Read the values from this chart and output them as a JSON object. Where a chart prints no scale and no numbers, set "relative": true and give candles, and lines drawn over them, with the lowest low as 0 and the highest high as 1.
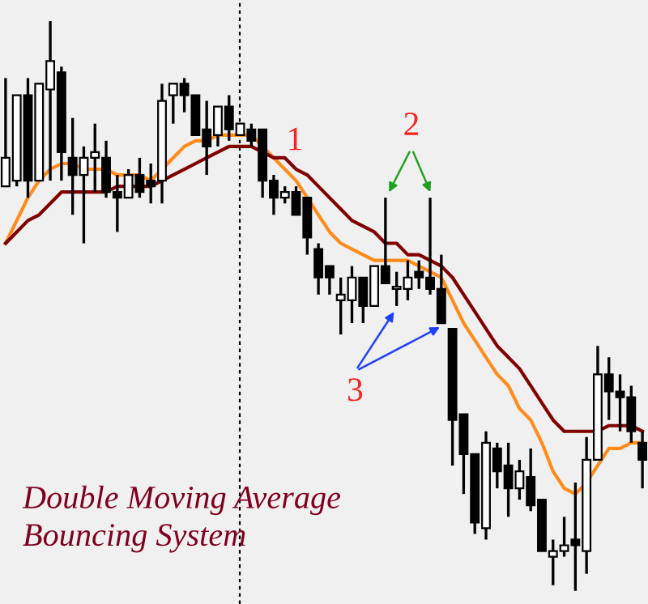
{
  "chart_data": {
    "type": "candlestick",
    "title": "Double Moving Average\nBouncing System",
    "relative": true,
    "categories": [
      null,
      null,
      null,
      null,
      null,
      null,
      null,
      null,
      null,
      null,
      null,
      null,
      null,
      null,
      null,
      null,
      null,
      null,
      null,
      null,
      null,
      null,
      null,
      null,
      null,
      null,
      null,
      null,
      null,
      null,
      null,
      null,
      null,
      null,
      null,
      null,
      null,
      null,
      null,
      null,
      null,
      null,
      null,
      null,
      null,
      null,
      null,
      null,
      null,
      null,
      null,
      null,
      null,
      null,
      null,
      null,
      null,
      null
    ],
    "ohlc": [
      [
        0.71,
        0.9,
        0.71,
        0.76
      ],
      [
        0.72,
        0.87,
        0.71,
        0.87
      ],
      [
        0.87,
        0.9,
        0.69,
        0.72
      ],
      [
        0.72,
        0.89,
        0.72,
        0.89
      ],
      [
        0.88,
        1.0,
        0.72,
        0.93
      ],
      [
        0.91,
        0.92,
        0.72,
        0.77
      ],
      [
        0.76,
        0.83,
        0.66,
        0.73
      ],
      [
        0.73,
        0.78,
        0.61,
        0.76
      ],
      [
        0.76,
        0.82,
        0.7,
        0.77
      ],
      [
        0.76,
        0.79,
        0.69,
        0.7
      ],
      [
        0.7,
        0.73,
        0.63,
        0.69
      ],
      [
        0.69,
        0.74,
        0.69,
        0.73
      ],
      [
        0.73,
        0.76,
        0.69,
        0.7
      ],
      [
        0.72,
        0.75,
        0.68,
        0.71
      ],
      [
        0.72,
        0.89,
        0.68,
        0.86
      ],
      [
        0.87,
        0.89,
        0.82,
        0.89
      ],
      [
        0.89,
        0.9,
        0.84,
        0.87
      ],
      [
        0.87,
        0.87,
        0.8,
        0.8
      ],
      [
        0.81,
        0.86,
        0.73,
        0.78
      ],
      [
        0.8,
        0.85,
        0.78,
        0.85
      ],
      [
        0.85,
        0.87,
        0.79,
        0.81
      ],
      [
        0.8,
        0.82,
        0.8,
        0.82
      ],
      [
        0.81,
        0.82,
        0.78,
        0.79
      ],
      [
        0.81,
        0.81,
        0.69,
        0.72
      ],
      [
        0.72,
        0.73,
        0.66,
        0.69
      ],
      [
        0.69,
        0.71,
        0.68,
        0.7
      ],
      [
        0.7,
        0.71,
        0.66,
        0.66
      ],
      [
        0.69,
        0.69,
        0.59,
        0.62
      ],
      [
        0.6,
        0.61,
        0.52,
        0.55
      ],
      [
        0.57,
        0.57,
        0.52,
        0.55
      ],
      [
        0.51,
        0.55,
        0.45,
        0.52
      ],
      [
        0.51,
        0.57,
        0.47,
        0.55
      ],
      [
        0.55,
        0.55,
        0.47,
        0.5
      ],
      [
        0.5,
        0.57,
        0.5,
        0.57
      ],
      [
        0.57,
        0.69,
        0.54,
        0.54
      ],
      [
        0.53,
        0.56,
        0.5,
        0.53
      ],
      [
        0.53,
        0.58,
        0.51,
        0.55
      ],
      [
        0.56,
        0.58,
        0.53,
        0.55
      ],
      [
        0.55,
        0.69,
        0.52,
        0.53
      ],
      [
        0.53,
        0.59,
        0.47,
        0.47
      ],
      [
        0.46,
        0.46,
        0.22,
        0.3
      ],
      [
        0.31,
        0.31,
        0.17,
        0.24
      ],
      [
        0.24,
        0.24,
        0.1,
        0.12
      ],
      [
        0.11,
        0.28,
        0.09,
        0.26
      ],
      [
        0.25,
        0.26,
        0.18,
        0.21
      ],
      [
        0.22,
        0.26,
        0.13,
        0.18
      ],
      [
        0.18,
        0.23,
        0.16,
        0.21
      ],
      [
        0.2,
        0.25,
        0.14,
        0.15
      ],
      [
        0.16,
        0.16,
        0.07,
        0.07
      ],
      [
        0.06,
        0.09,
        0.01,
        0.07
      ],
      [
        0.07,
        0.13,
        0.06,
        0.08
      ],
      [
        0.09,
        0.19,
        0.0,
        0.08
      ],
      [
        0.07,
        0.27,
        0.03,
        0.23
      ],
      [
        0.23,
        0.43,
        0.23,
        0.38
      ],
      [
        0.38,
        0.41,
        0.3,
        0.35
      ],
      [
        0.35,
        0.38,
        0.28,
        0.34
      ],
      [
        0.34,
        0.36,
        0.26,
        0.28
      ],
      [
        0.26,
        0.28,
        0.18,
        0.23
      ]
    ],
    "series": [
      {
        "type": "line",
        "color": "#ff8c1a",
        "values": [
          0.61,
          0.65,
          0.69,
          0.72,
          0.74,
          0.75,
          0.75,
          0.74,
          0.74,
          0.74,
          0.73,
          0.73,
          0.73,
          0.72,
          0.74,
          0.76,
          0.78,
          0.79,
          0.79,
          0.8,
          0.8,
          0.8,
          0.8,
          0.78,
          0.76,
          0.74,
          0.72,
          0.69,
          0.66,
          0.63,
          0.61,
          0.6,
          0.59,
          0.58,
          0.58,
          0.58,
          0.58,
          0.57,
          0.56,
          0.55,
          0.51,
          0.47,
          0.44,
          0.41,
          0.38,
          0.36,
          0.32,
          0.3,
          0.26,
          0.21,
          0.18,
          0.17,
          0.19,
          0.22,
          0.25,
          0.25,
          0.26,
          0.26
        ]
      },
      {
        "type": "line",
        "color": "#800000",
        "values": [
          0.61,
          0.63,
          0.65,
          0.66,
          0.68,
          0.7,
          0.7,
          0.7,
          0.7,
          0.7,
          0.71,
          0.71,
          0.71,
          0.71,
          0.72,
          0.73,
          0.74,
          0.75,
          0.76,
          0.77,
          0.78,
          0.78,
          0.78,
          0.77,
          0.76,
          0.76,
          0.74,
          0.73,
          0.71,
          0.69,
          0.67,
          0.65,
          0.64,
          0.63,
          0.61,
          0.61,
          0.59,
          0.59,
          0.58,
          0.57,
          0.55,
          0.52,
          0.49,
          0.46,
          0.43,
          0.41,
          0.39,
          0.36,
          0.33,
          0.3,
          0.28,
          0.28,
          0.28,
          0.28,
          0.29,
          0.29,
          0.29,
          0.28
        ]
      }
    ],
    "annotations": [
      "1",
      "2",
      "3"
    ]
  }
}
